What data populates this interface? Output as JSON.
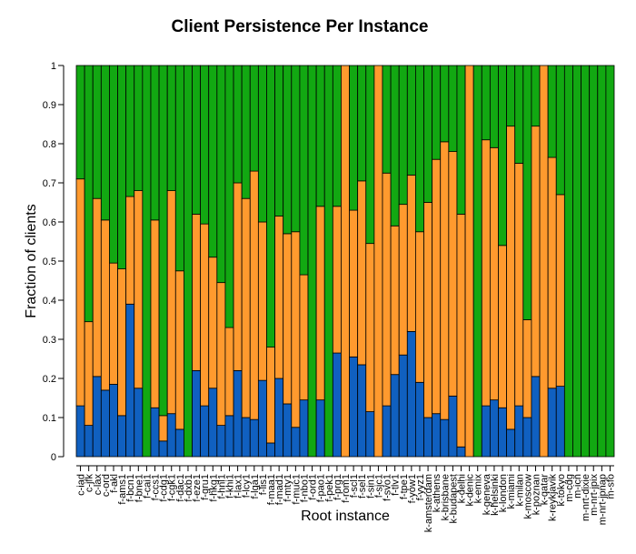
{
  "chart_data": {
    "type": "bar",
    "stacked": true,
    "title": "Client Persistence Per Instance",
    "x_label": "Root instance",
    "y_label": "Fraction of clients",
    "categories": [
      "c-iad",
      "c-jfk",
      "c-lax",
      "c-ord",
      "f-akl",
      "f-ams1",
      "f-bcn1",
      "f-bne1",
      "f-cai1",
      "f-ccs1",
      "f-cdg1",
      "f-cgk1",
      "f-dac1",
      "f-dxb1",
      "f-eze1",
      "f-gru1",
      "f-hkg1",
      "f-hnl1",
      "f-khi1",
      "f-lax1",
      "f-lcy1",
      "f-lga1",
      "f-lis1",
      "f-maa1",
      "f-mad1",
      "f-mty1",
      "f-muc1",
      "f-nbo1",
      "f-ord1",
      "f-pao1",
      "f-pek1",
      "f-prg1",
      "f-rom1",
      "f-scl1",
      "f-sel1",
      "f-sin1",
      "f-sjc1",
      "f-svo1",
      "f-tlv1",
      "f-tpe1",
      "f-yow1",
      "f-yyz1",
      "k-amsterdam",
      "k-athens",
      "k-brisbane",
      "k-budapest",
      "k-delhi",
      "k-denic",
      "k-emix",
      "k-geneva",
      "k-helsinki",
      "k-london",
      "k-miami",
      "k-milan",
      "k-moscow",
      "k-poznan",
      "k-qatar",
      "k-reykjavik",
      "k-tokyo",
      "m-cdg",
      "m-icn",
      "m-nrt-dixie",
      "m-nrt-jpix",
      "m-nrt-jpnap",
      "m-sfo"
    ],
    "series": [
      {
        "color": "#1060c0",
        "values": [
          0.13,
          0.08,
          0.205,
          0.17,
          0.185,
          0.105,
          0.39,
          0.175,
          0,
          0.125,
          0.04,
          0.11,
          0.07,
          0,
          0.22,
          0.13,
          0.175,
          0.08,
          0.105,
          0.22,
          0.1,
          0.095,
          0.195,
          0.035,
          0.2,
          0.135,
          0.075,
          0.145,
          0,
          0.145,
          0,
          0.265,
          0,
          0.255,
          0.235,
          0.115,
          0,
          0.13,
          0.21,
          0.26,
          0.32,
          0.19,
          0.1,
          0.11,
          0.095,
          0.155,
          0.025,
          0,
          0,
          0.13,
          0.145,
          0.125,
          0.07,
          0.13,
          0.1,
          0.205,
          0,
          0.175,
          0.18,
          0,
          0,
          0,
          0,
          0,
          0
        ]
      },
      {
        "color": "#ff9a2e",
        "values": [
          0.58,
          0.265,
          0.455,
          0.435,
          0.31,
          0.375,
          0.275,
          0.505,
          0,
          0.48,
          0.065,
          0.57,
          0.405,
          0,
          0.4,
          0.465,
          0.335,
          0.365,
          0.225,
          0.48,
          0.56,
          0.635,
          0.405,
          0.245,
          0.415,
          0.435,
          0.5,
          0.32,
          0,
          0.495,
          0,
          0.375,
          1,
          0.375,
          0.47,
          0.43,
          1,
          0.595,
          0.38,
          0.385,
          0.4,
          0.385,
          0.55,
          0.65,
          0.71,
          0.625,
          0.595,
          1,
          0,
          0.68,
          0.645,
          0.415,
          0.775,
          0.62,
          0.25,
          0.64,
          1,
          0.59,
          0.49,
          0,
          0,
          0,
          0,
          0,
          0
        ]
      },
      {
        "color": "#12a812",
        "values": [
          0.29,
          0.655,
          0.34,
          0.395,
          0.505,
          0.52,
          0.335,
          0.32,
          1,
          0.395,
          0.895,
          0.32,
          0.525,
          1,
          0.38,
          0.405,
          0.49,
          0.555,
          0.67,
          0.3,
          0.34,
          0.27,
          0.4,
          0.72,
          0.385,
          0.43,
          0.425,
          0.535,
          1,
          0.36,
          1,
          0.36,
          0,
          0.37,
          0.295,
          0.455,
          0,
          0.275,
          0.41,
          0.355,
          0.28,
          0.425,
          0.35,
          0.24,
          0.195,
          0.22,
          0.38,
          0,
          1,
          0.19,
          0.21,
          0.46,
          0.155,
          0.25,
          0.65,
          0.155,
          0,
          0.235,
          0.33,
          1,
          1,
          1,
          1,
          1,
          1
        ]
      }
    ],
    "ylim": [
      0,
      1
    ],
    "yticks": [
      0,
      0.1,
      0.2,
      0.3,
      0.4,
      0.5,
      0.6,
      0.7,
      0.8,
      0.9,
      1
    ]
  }
}
